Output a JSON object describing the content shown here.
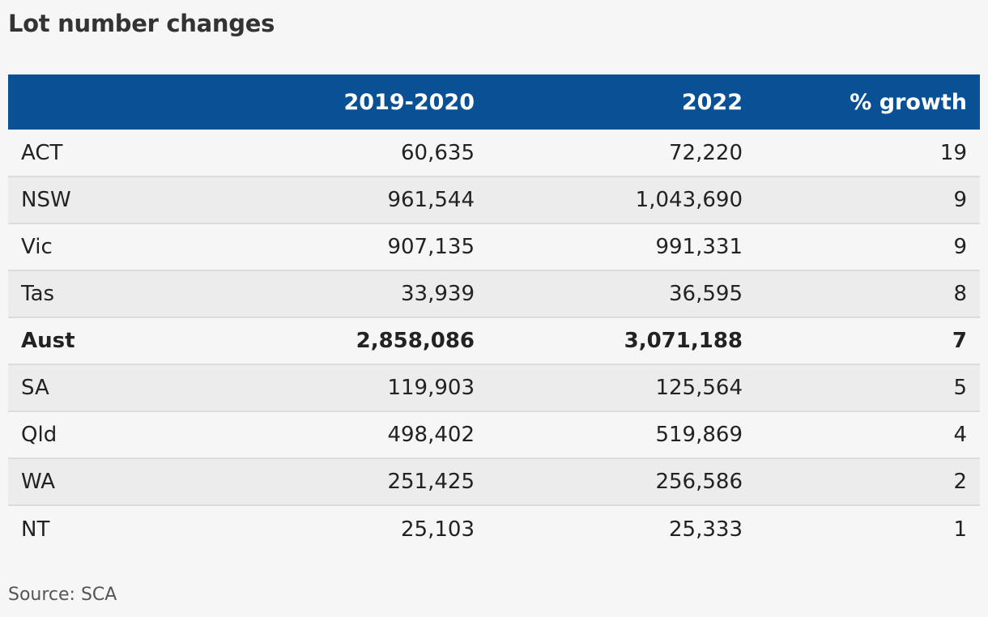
{
  "title": "Lot number changes",
  "source": "Source: SCA",
  "chart_data": {
    "type": "table",
    "title": "Lot number changes",
    "columns": [
      "",
      "2019-2020",
      "2022",
      "% growth"
    ],
    "rows": [
      {
        "region": "ACT",
        "y2019_2020": "60,635",
        "y2022": "72,220",
        "growth": "19",
        "bold": false
      },
      {
        "region": "NSW",
        "y2019_2020": "961,544",
        "y2022": "1,043,690",
        "growth": "9",
        "bold": false
      },
      {
        "region": "Vic",
        "y2019_2020": "907,135",
        "y2022": "991,331",
        "growth": "9",
        "bold": false
      },
      {
        "region": "Tas",
        "y2019_2020": "33,939",
        "y2022": "36,595",
        "growth": "8",
        "bold": false
      },
      {
        "region": "Aust",
        "y2019_2020": "2,858,086",
        "y2022": "3,071,188",
        "growth": "7",
        "bold": true
      },
      {
        "region": "SA",
        "y2019_2020": "119,903",
        "y2022": "125,564",
        "growth": "5",
        "bold": false
      },
      {
        "region": "Qld",
        "y2019_2020": "498,402",
        "y2022": "519,869",
        "growth": "4",
        "bold": false
      },
      {
        "region": "WA",
        "y2019_2020": "251,425",
        "y2022": "256,586",
        "growth": "2",
        "bold": false
      },
      {
        "region": "NT",
        "y2019_2020": "25,103",
        "y2022": "25,333",
        "growth": "1",
        "bold": false
      }
    ],
    "header_color": "#0a5094"
  }
}
